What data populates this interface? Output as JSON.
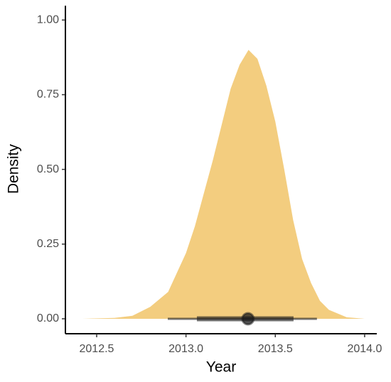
{
  "chart_data": {
    "type": "density",
    "xlabel": "Year",
    "ylabel": "Density",
    "x": [
      2012.42,
      2012.6,
      2012.7,
      2012.8,
      2012.9,
      2013.0,
      2013.05,
      2013.1,
      2013.15,
      2013.2,
      2013.25,
      2013.3,
      2013.35,
      2013.4,
      2013.45,
      2013.5,
      2013.55,
      2013.6,
      2013.65,
      2013.7,
      2013.75,
      2013.8,
      2013.9,
      2014.0
    ],
    "values": [
      0.0,
      0.003,
      0.01,
      0.04,
      0.09,
      0.22,
      0.31,
      0.42,
      0.53,
      0.65,
      0.77,
      0.85,
      0.9,
      0.87,
      0.78,
      0.66,
      0.5,
      0.33,
      0.2,
      0.12,
      0.06,
      0.03,
      0.005,
      0.0
    ],
    "color": "#f3cd7f",
    "point_interval": {
      "median": 2013.347,
      "inner": [
        2013.061,
        2013.602
      ],
      "outer": [
        2012.898,
        2013.733
      ],
      "color": "#1a1a1a"
    },
    "xlim": [
      2012.325,
      2014.068
    ],
    "ylim": [
      -0.05,
      1.048
    ],
    "xticks": [
      2012.5,
      {
        "value": 2013,
        "label": "2013.0"
      },
      2013.5,
      {
        "value": 2014,
        "label": "2014.0"
      }
    ],
    "yticks": [
      {
        "value": 0,
        "label": "0.00"
      },
      0.25,
      {
        "value": 0.5,
        "label": "0.50"
      },
      0.75,
      {
        "value": 1,
        "label": "1.00"
      }
    ]
  }
}
